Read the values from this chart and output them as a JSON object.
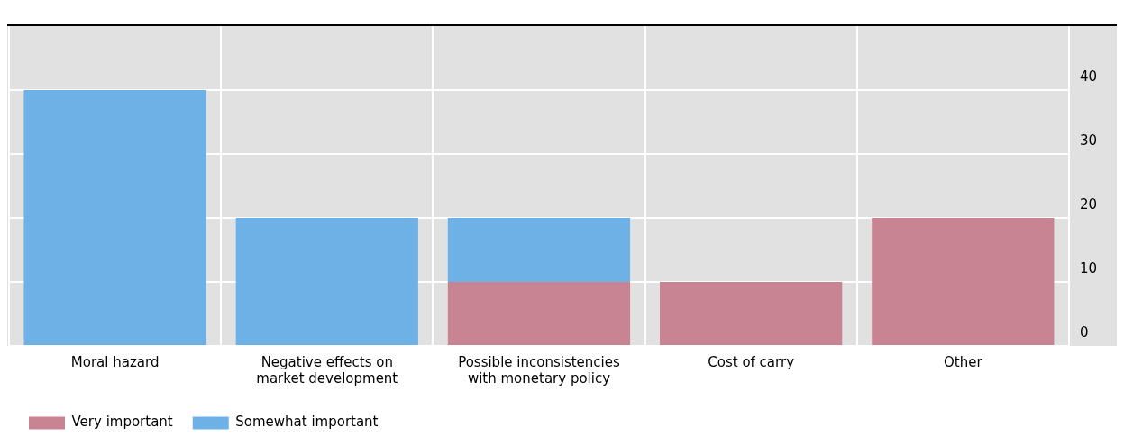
{
  "chart_data": {
    "type": "bar",
    "stacked": true,
    "categories": [
      "Moral hazard",
      "Negative effects on market development",
      "Possible inconsistencies with monetary policy",
      "Cost of carry",
      "Other"
    ],
    "series": [
      {
        "name": "Very important",
        "color": "#c98494",
        "values": [
          0,
          0,
          10,
          10,
          20
        ]
      },
      {
        "name": "Somewhat important",
        "color": "#6db1e7",
        "values": [
          40,
          20,
          10,
          0,
          0
        ]
      }
    ],
    "ylim": [
      0,
      50
    ],
    "yticks": [
      0,
      10,
      20,
      30,
      40
    ],
    "grid": true,
    "legend": "bottom left"
  }
}
